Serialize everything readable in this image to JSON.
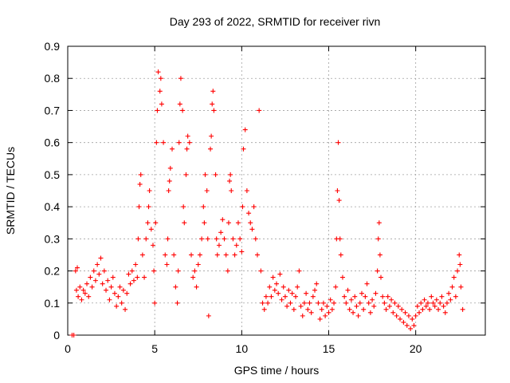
{
  "chart_data": {
    "type": "scatter",
    "title": "Day 293 of 2022, SRMTID for receiver rivn",
    "xlabel": "GPS time / hours",
    "ylabel": "SRMTID / TECUs",
    "xlim": [
      0,
      24
    ],
    "ylim": [
      0,
      0.9
    ],
    "xticks": [
      0,
      5,
      10,
      15,
      20
    ],
    "yticks": [
      0,
      0.1,
      0.2,
      0.3,
      0.4,
      0.5,
      0.6,
      0.7,
      0.8,
      0.9
    ],
    "xtick_labels": [
      "0",
      "5",
      "10",
      "15",
      "20"
    ],
    "ytick_labels": [
      "0",
      "0.1",
      "0.2",
      "0.3",
      "0.4",
      "0.5",
      "0.6",
      "0.7",
      "0.8",
      "0.9"
    ],
    "grid": true,
    "marker": "+",
    "color": "#ff0000",
    "series": [
      {
        "name": "rivn",
        "points": [
          [
            0.25,
            0.0
          ],
          [
            0.35,
            0.0
          ],
          [
            0.45,
            0.2
          ],
          [
            0.5,
            0.14
          ],
          [
            0.55,
            0.21
          ],
          [
            0.6,
            0.12
          ],
          [
            0.7,
            0.15
          ],
          [
            0.8,
            0.11
          ],
          [
            0.9,
            0.14
          ],
          [
            1.0,
            0.13
          ],
          [
            1.1,
            0.16
          ],
          [
            1.2,
            0.12
          ],
          [
            1.3,
            0.18
          ],
          [
            1.4,
            0.15
          ],
          [
            1.5,
            0.2
          ],
          [
            1.6,
            0.17
          ],
          [
            1.7,
            0.22
          ],
          [
            1.8,
            0.19
          ],
          [
            1.9,
            0.24
          ],
          [
            2.0,
            0.16
          ],
          [
            2.1,
            0.2
          ],
          [
            2.2,
            0.14
          ],
          [
            2.3,
            0.17
          ],
          [
            2.4,
            0.11
          ],
          [
            2.5,
            0.15
          ],
          [
            2.6,
            0.18
          ],
          [
            2.7,
            0.13
          ],
          [
            2.8,
            0.09
          ],
          [
            2.9,
            0.12
          ],
          [
            3.0,
            0.15
          ],
          [
            3.1,
            0.1
          ],
          [
            3.2,
            0.14
          ],
          [
            3.3,
            0.08
          ],
          [
            3.4,
            0.13
          ],
          [
            3.5,
            0.19
          ],
          [
            3.6,
            0.16
          ],
          [
            3.7,
            0.2
          ],
          [
            3.8,
            0.17
          ],
          [
            3.9,
            0.22
          ],
          [
            4.0,
            0.18
          ],
          [
            4.05,
            0.3
          ],
          [
            4.1,
            0.4
          ],
          [
            4.15,
            0.47
          ],
          [
            4.2,
            0.5
          ],
          [
            4.3,
            0.25
          ],
          [
            4.4,
            0.18
          ],
          [
            4.5,
            0.3
          ],
          [
            4.6,
            0.35
          ],
          [
            4.65,
            0.4
          ],
          [
            4.7,
            0.45
          ],
          [
            4.8,
            0.33
          ],
          [
            4.9,
            0.28
          ],
          [
            4.95,
            0.2
          ],
          [
            5.0,
            0.1
          ],
          [
            5.05,
            0.35
          ],
          [
            5.1,
            0.6
          ],
          [
            5.15,
            0.7
          ],
          [
            5.2,
            0.82
          ],
          [
            5.3,
            0.76
          ],
          [
            5.35,
            0.8
          ],
          [
            5.4,
            0.72
          ],
          [
            5.5,
            0.6
          ],
          [
            5.6,
            0.25
          ],
          [
            5.7,
            0.22
          ],
          [
            5.75,
            0.3
          ],
          [
            5.8,
            0.45
          ],
          [
            5.85,
            0.48
          ],
          [
            5.9,
            0.52
          ],
          [
            6.0,
            0.58
          ],
          [
            6.1,
            0.25
          ],
          [
            6.2,
            0.15
          ],
          [
            6.3,
            0.1
          ],
          [
            6.35,
            0.2
          ],
          [
            6.4,
            0.6
          ],
          [
            6.45,
            0.72
          ],
          [
            6.5,
            0.8
          ],
          [
            6.6,
            0.7
          ],
          [
            6.65,
            0.4
          ],
          [
            6.7,
            0.35
          ],
          [
            6.8,
            0.5
          ],
          [
            6.85,
            0.58
          ],
          [
            6.9,
            0.62
          ],
          [
            7.0,
            0.6
          ],
          [
            7.1,
            0.25
          ],
          [
            7.2,
            0.18
          ],
          [
            7.3,
            0.2
          ],
          [
            7.4,
            0.15
          ],
          [
            7.5,
            0.22
          ],
          [
            7.6,
            0.25
          ],
          [
            7.7,
            0.3
          ],
          [
            7.8,
            0.4
          ],
          [
            7.85,
            0.35
          ],
          [
            7.9,
            0.5
          ],
          [
            8.0,
            0.45
          ],
          [
            8.05,
            0.3
          ],
          [
            8.1,
            0.06
          ],
          [
            8.2,
            0.58
          ],
          [
            8.25,
            0.62
          ],
          [
            8.3,
            0.72
          ],
          [
            8.35,
            0.76
          ],
          [
            8.4,
            0.7
          ],
          [
            8.5,
            0.5
          ],
          [
            8.55,
            0.3
          ],
          [
            8.6,
            0.25
          ],
          [
            8.7,
            0.28
          ],
          [
            8.8,
            0.32
          ],
          [
            8.9,
            0.36
          ],
          [
            9.0,
            0.3
          ],
          [
            9.1,
            0.25
          ],
          [
            9.2,
            0.2
          ],
          [
            9.25,
            0.35
          ],
          [
            9.3,
            0.48
          ],
          [
            9.35,
            0.5
          ],
          [
            9.4,
            0.45
          ],
          [
            9.5,
            0.3
          ],
          [
            9.6,
            0.25
          ],
          [
            9.7,
            0.28
          ],
          [
            9.8,
            0.35
          ],
          [
            9.9,
            0.3
          ],
          [
            10.0,
            0.26
          ],
          [
            10.05,
            0.4
          ],
          [
            10.1,
            0.58
          ],
          [
            10.2,
            0.64
          ],
          [
            10.3,
            0.45
          ],
          [
            10.4,
            0.38
          ],
          [
            10.5,
            0.35
          ],
          [
            10.6,
            0.33
          ],
          [
            10.7,
            0.4
          ],
          [
            10.8,
            0.3
          ],
          [
            10.9,
            0.25
          ],
          [
            11.0,
            0.7
          ],
          [
            11.1,
            0.2
          ],
          [
            11.2,
            0.1
          ],
          [
            11.3,
            0.08
          ],
          [
            11.4,
            0.12
          ],
          [
            11.5,
            0.1
          ],
          [
            11.6,
            0.15
          ],
          [
            11.7,
            0.12
          ],
          [
            11.8,
            0.18
          ],
          [
            11.9,
            0.14
          ],
          [
            12.0,
            0.16
          ],
          [
            12.1,
            0.13
          ],
          [
            12.2,
            0.19
          ],
          [
            12.3,
            0.11
          ],
          [
            12.4,
            0.15
          ],
          [
            12.5,
            0.12
          ],
          [
            12.6,
            0.09
          ],
          [
            12.7,
            0.14
          ],
          [
            12.8,
            0.1
          ],
          [
            12.9,
            0.13
          ],
          [
            13.0,
            0.08
          ],
          [
            13.1,
            0.12
          ],
          [
            13.2,
            0.15
          ],
          [
            13.3,
            0.2
          ],
          [
            13.4,
            0.09
          ],
          [
            13.5,
            0.06
          ],
          [
            13.6,
            0.1
          ],
          [
            13.7,
            0.13
          ],
          [
            13.8,
            0.08
          ],
          [
            13.9,
            0.1
          ],
          [
            14.0,
            0.07
          ],
          [
            14.1,
            0.12
          ],
          [
            14.2,
            0.14
          ],
          [
            14.3,
            0.16
          ],
          [
            14.4,
            0.1
          ],
          [
            14.5,
            0.05
          ],
          [
            14.6,
            0.08
          ],
          [
            14.7,
            0.1
          ],
          [
            14.8,
            0.06
          ],
          [
            14.9,
            0.09
          ],
          [
            15.0,
            0.07
          ],
          [
            15.1,
            0.11
          ],
          [
            15.2,
            0.08
          ],
          [
            15.3,
            0.1
          ],
          [
            15.4,
            0.15
          ],
          [
            15.45,
            0.3
          ],
          [
            15.5,
            0.45
          ],
          [
            15.55,
            0.6
          ],
          [
            15.6,
            0.42
          ],
          [
            15.65,
            0.3
          ],
          [
            15.7,
            0.25
          ],
          [
            15.8,
            0.18
          ],
          [
            15.9,
            0.12
          ],
          [
            16.0,
            0.1
          ],
          [
            16.1,
            0.14
          ],
          [
            16.2,
            0.08
          ],
          [
            16.3,
            0.11
          ],
          [
            16.4,
            0.07
          ],
          [
            16.5,
            0.12
          ],
          [
            16.6,
            0.09
          ],
          [
            16.7,
            0.06
          ],
          [
            16.8,
            0.1
          ],
          [
            16.9,
            0.13
          ],
          [
            17.0,
            0.08
          ],
          [
            17.1,
            0.12
          ],
          [
            17.2,
            0.16
          ],
          [
            17.3,
            0.1
          ],
          [
            17.4,
            0.07
          ],
          [
            17.5,
            0.11
          ],
          [
            17.6,
            0.09
          ],
          [
            17.7,
            0.13
          ],
          [
            17.8,
            0.2
          ],
          [
            17.85,
            0.3
          ],
          [
            17.9,
            0.35
          ],
          [
            17.95,
            0.25
          ],
          [
            18.0,
            0.18
          ],
          [
            18.1,
            0.12
          ],
          [
            18.2,
            0.1
          ],
          [
            18.3,
            0.08
          ],
          [
            18.4,
            0.12
          ],
          [
            18.5,
            0.09
          ],
          [
            18.6,
            0.11
          ],
          [
            18.7,
            0.07
          ],
          [
            18.8,
            0.1
          ],
          [
            18.9,
            0.06
          ],
          [
            19.0,
            0.09
          ],
          [
            19.1,
            0.05
          ],
          [
            19.2,
            0.08
          ],
          [
            19.3,
            0.04
          ],
          [
            19.4,
            0.07
          ],
          [
            19.5,
            0.03
          ],
          [
            19.6,
            0.06
          ],
          [
            19.7,
            0.02
          ],
          [
            19.8,
            0.05
          ],
          [
            19.9,
            0.03
          ],
          [
            20.0,
            0.06
          ],
          [
            20.1,
            0.09
          ],
          [
            20.2,
            0.07
          ],
          [
            20.3,
            0.1
          ],
          [
            20.4,
            0.08
          ],
          [
            20.5,
            0.11
          ],
          [
            20.6,
            0.09
          ],
          [
            20.7,
            0.1
          ],
          [
            20.8,
            0.08
          ],
          [
            20.9,
            0.12
          ],
          [
            21.0,
            0.1
          ],
          [
            21.1,
            0.09
          ],
          [
            21.2,
            0.11
          ],
          [
            21.3,
            0.08
          ],
          [
            21.4,
            0.1
          ],
          [
            21.5,
            0.12
          ],
          [
            21.6,
            0.09
          ],
          [
            21.7,
            0.07
          ],
          [
            21.8,
            0.1
          ],
          [
            21.9,
            0.13
          ],
          [
            22.0,
            0.11
          ],
          [
            22.1,
            0.15
          ],
          [
            22.2,
            0.18
          ],
          [
            22.3,
            0.12
          ],
          [
            22.4,
            0.2
          ],
          [
            22.5,
            0.25
          ],
          [
            22.55,
            0.22
          ],
          [
            22.6,
            0.15
          ],
          [
            22.7,
            0.08
          ]
        ]
      }
    ]
  }
}
